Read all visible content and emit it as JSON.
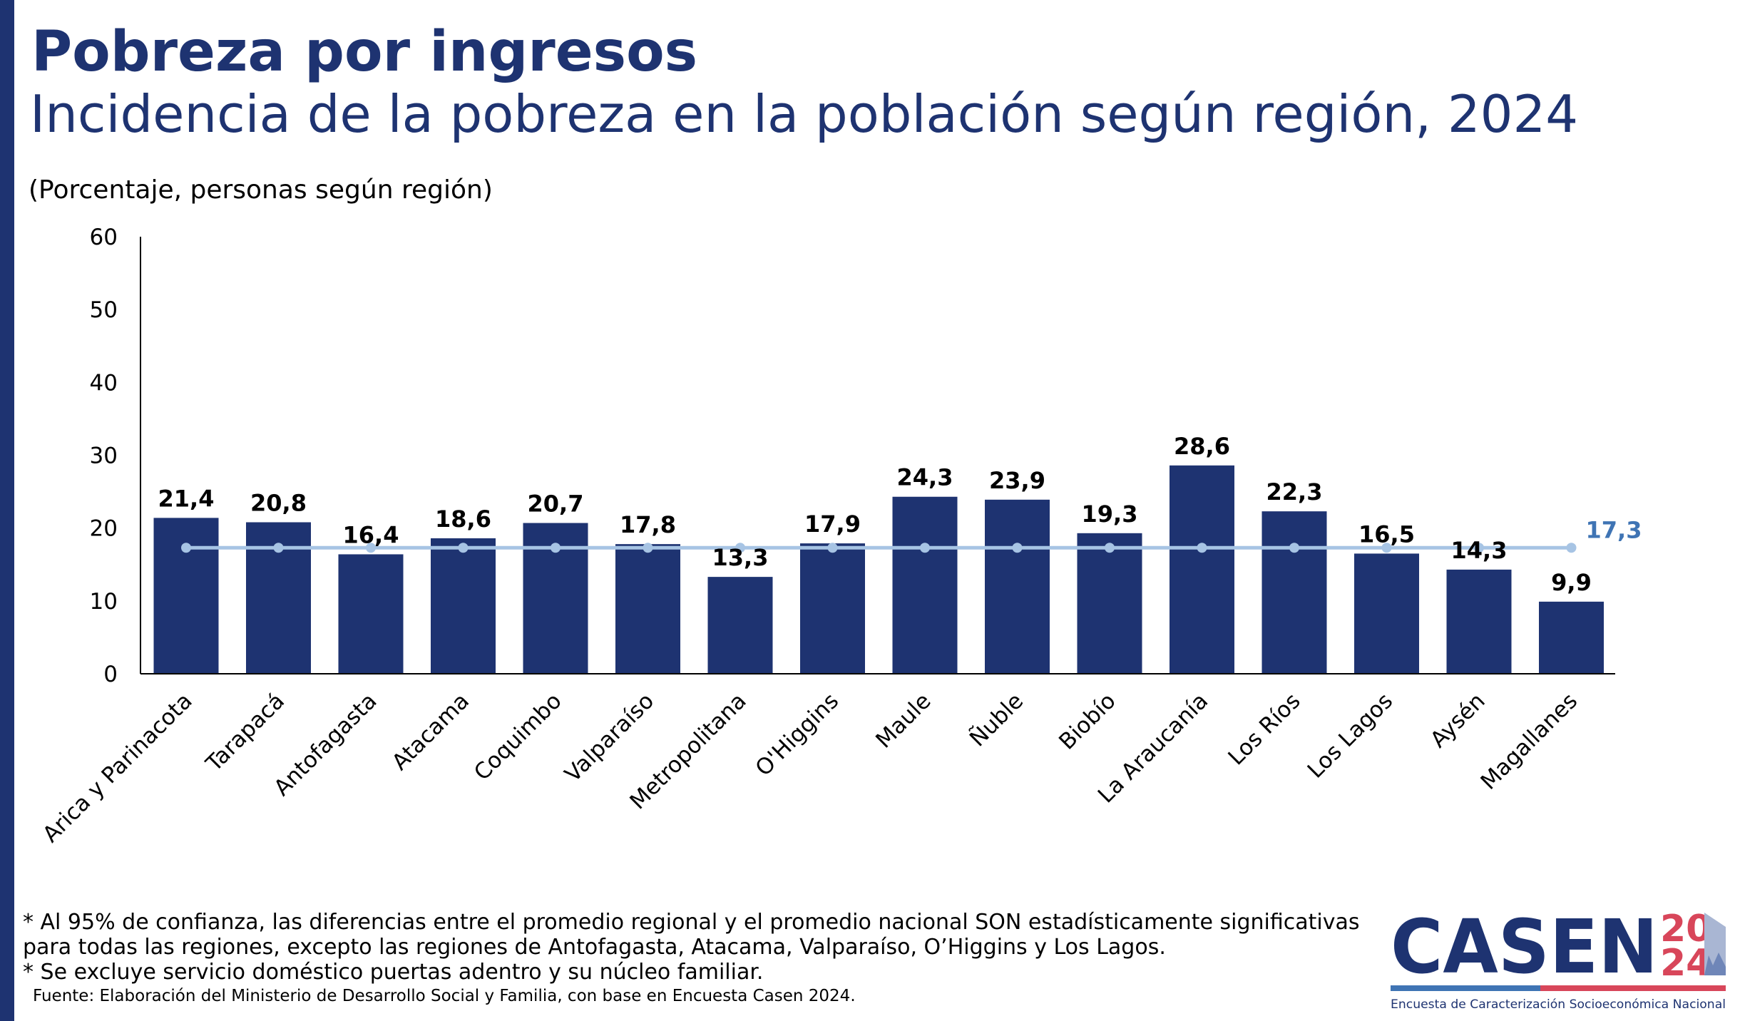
{
  "header": {
    "title": "Pobreza por ingresos",
    "subtitle": "Incidencia de la pobreza en la población según región, 2024",
    "unit": "(Porcentaje, personas según región)"
  },
  "chart_data": {
    "type": "bar",
    "title": "",
    "xlabel": "",
    "ylabel": "",
    "ylim": [
      0,
      60
    ],
    "yticks": [
      "0",
      "10",
      "20",
      "30",
      "40",
      "50",
      "60"
    ],
    "grid": false,
    "categories": [
      "Arica y Parinacota",
      "Tarapacá",
      "Antofagasta",
      "Atacama",
      "Coquimbo",
      "Valparaíso",
      "Metropolitana",
      "O'Higgins",
      "Maule",
      "Ñuble",
      "Biobío",
      "La Araucanía",
      "Los Ríos",
      "Los Lagos",
      "Aysén",
      "Magallanes"
    ],
    "values": [
      21.4,
      20.8,
      16.4,
      18.6,
      20.7,
      17.8,
      13.3,
      17.9,
      24.3,
      23.9,
      19.3,
      28.6,
      22.3,
      16.5,
      14.3,
      9.9
    ],
    "value_labels": [
      "21,4",
      "20,8",
      "16,4",
      "18,6",
      "20,7",
      "17,8",
      "13,3",
      "17,9",
      "24,3",
      "23,9",
      "19,3",
      "28,6",
      "22,3",
      "16,5",
      "14,3",
      "9,9"
    ],
    "reference_line": {
      "value": 17.3,
      "label": "17,3",
      "color": "#a7c4e4",
      "label_color": "#3f74b4"
    },
    "bar_color": "#1e3371"
  },
  "notes": [
    "* Al 95% de confianza, las diferencias entre el promedio regional y el promedio nacional SON estadísticamente significativas",
    "para todas las regiones, excepto las regiones de Antofagasta, Atacama, Valparaíso, O’Higgins y Los Lagos.",
    "* Se excluye servicio doméstico puertas adentro y su núcleo familiar."
  ],
  "source": "Fuente: Elaboración del Ministerio de Desarrollo Social y Familia, con base en Encuesta Casen 2024.",
  "logo": {
    "word": "CASEN",
    "year_top": "20",
    "year_bottom": "24",
    "tagline": "Encuesta de Caracterización Socioeconómica Nacional",
    "colors": {
      "navy": "#1e3371",
      "red": "#d8465a",
      "blue": "#3f74b4"
    }
  }
}
